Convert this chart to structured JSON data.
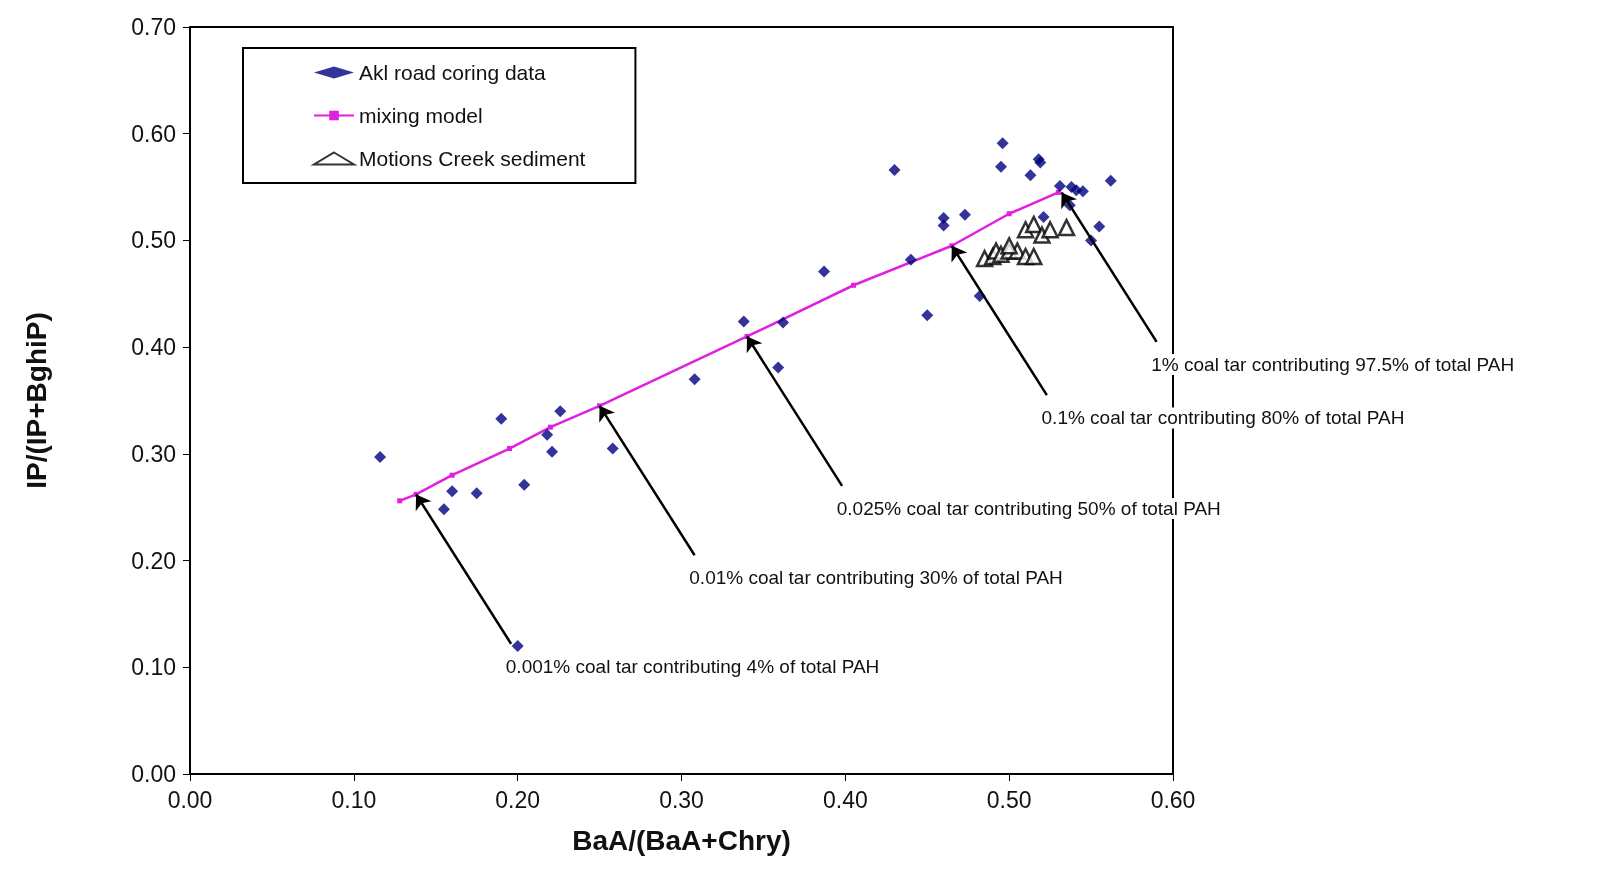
{
  "chart_data": {
    "type": "scatter",
    "xlabel": "BaA/(BaA+Chry)",
    "ylabel": "IP/(IP+BghiP)",
    "xlim": [
      0,
      0.6
    ],
    "ylim": [
      0,
      0.7
    ],
    "xticks": [
      {
        "value": 0,
        "label": "0.00"
      },
      {
        "value": 0.1,
        "label": "0.10"
      },
      {
        "value": 0.2,
        "label": "0.20"
      },
      {
        "value": 0.3,
        "label": "0.30"
      },
      {
        "value": 0.4,
        "label": "0.40"
      },
      {
        "value": 0.5,
        "label": "0.50"
      },
      {
        "value": 0.6,
        "label": "0.60"
      }
    ],
    "yticks": [
      {
        "value": 0,
        "label": "0.00"
      },
      {
        "value": 0.1,
        "label": "0.10"
      },
      {
        "value": 0.2,
        "label": "0.20"
      },
      {
        "value": 0.3,
        "label": "0.30"
      },
      {
        "value": 0.4,
        "label": "0.40"
      },
      {
        "value": 0.5,
        "label": "0.50"
      },
      {
        "value": 0.6,
        "label": "0.60"
      },
      {
        "value": 0.7,
        "label": "0.70"
      }
    ],
    "grid": false,
    "legend": "top left",
    "series": [
      {
        "name": "Akl road coring data",
        "marker": "diamond",
        "color": "#000080",
        "x": [
          0.116,
          0.19,
          0.16,
          0.155,
          0.175,
          0.204,
          0.218,
          0.221,
          0.226,
          0.258,
          0.2,
          0.308,
          0.338,
          0.362,
          0.359,
          0.387,
          0.43,
          0.44,
          0.45,
          0.46,
          0.46,
          0.473,
          0.482,
          0.496,
          0.495,
          0.513,
          0.518,
          0.519,
          0.531,
          0.538,
          0.541,
          0.545,
          0.537,
          0.521,
          0.555,
          0.55,
          0.562
        ],
        "values": [
          0.297,
          0.333,
          0.265,
          0.248,
          0.263,
          0.271,
          0.318,
          0.302,
          0.34,
          0.305,
          0.12,
          0.37,
          0.424,
          0.423,
          0.381,
          0.471,
          0.566,
          0.482,
          0.43,
          0.521,
          0.514,
          0.524,
          0.448,
          0.591,
          0.569,
          0.561,
          0.576,
          0.573,
          0.551,
          0.55,
          0.547,
          0.546,
          0.533,
          0.522,
          0.513,
          0.5,
          0.556
        ]
      },
      {
        "name": "mixing model",
        "type": "line",
        "marker": "square",
        "color": "#e020e0",
        "x": [
          0.128,
          0.138,
          0.16,
          0.195,
          0.22,
          0.25,
          0.34,
          0.405,
          0.465,
          0.5,
          0.53
        ],
        "values": [
          0.256,
          0.262,
          0.28,
          0.305,
          0.325,
          0.345,
          0.41,
          0.458,
          0.495,
          0.525,
          0.545
        ]
      },
      {
        "name": "Motions Creek sediment",
        "marker": "triangle",
        "color": "#000000",
        "x": [
          0.485,
          0.49,
          0.492,
          0.495,
          0.5,
          0.505,
          0.51,
          0.515,
          0.5,
          0.51,
          0.515,
          0.52,
          0.525,
          0.535
        ],
        "values": [
          0.483,
          0.485,
          0.49,
          0.487,
          0.49,
          0.49,
          0.485,
          0.485,
          0.495,
          0.51,
          0.515,
          0.505,
          0.51,
          0.512
        ]
      }
    ],
    "annotations": [
      {
        "text": "0.001% coal tar contributing 4% of total PAH",
        "x": 0.138,
        "y": 0.262
      },
      {
        "text": "0.01% coal tar contributing 30% of total PAH",
        "x": 0.25,
        "y": 0.345
      },
      {
        "text": "0.025% coal tar contributing 50% of total PAH",
        "x": 0.34,
        "y": 0.41
      },
      {
        "text": "0.1% coal tar contributing 80% of total PAH",
        "x": 0.465,
        "y": 0.495
      },
      {
        "text": "1% coal tar contributing 97.5% of total PAH",
        "x": 0.532,
        "y": 0.545
      }
    ]
  }
}
